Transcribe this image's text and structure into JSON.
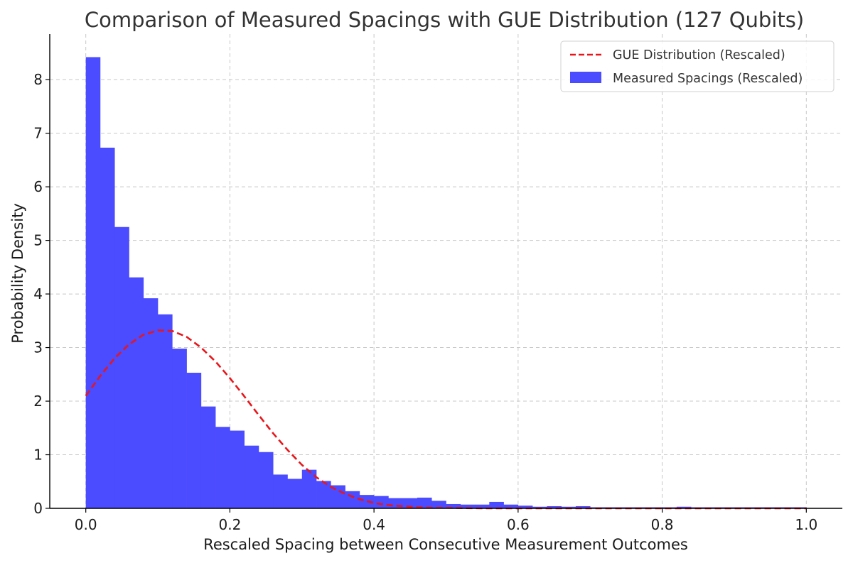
{
  "chart_data": {
    "type": "bar",
    "title": "Comparison of Measured Spacings with GUE Distribution (127 Qubits)",
    "xlabel": "Rescaled Spacing between Consecutive Measurement Outcomes",
    "ylabel": "Probability Density",
    "xlim": [
      -0.05,
      1.05
    ],
    "ylim": [
      0,
      8.85
    ],
    "xticks": [
      0.0,
      0.2,
      0.4,
      0.6,
      0.8,
      1.0
    ],
    "xtick_labels": [
      "0.0",
      "0.2",
      "0.4",
      "0.6",
      "0.8",
      "1.0"
    ],
    "yticks": [
      0,
      1,
      2,
      3,
      4,
      5,
      6,
      7,
      8
    ],
    "ytick_labels": [
      "0",
      "1",
      "2",
      "3",
      "4",
      "5",
      "6",
      "7",
      "8"
    ],
    "grid": true,
    "legend_position": "top-right",
    "histogram": {
      "name": "Measured Spacings (Rescaled)",
      "color": "#4b4bff",
      "bin_start": 0.0,
      "bin_width": 0.02,
      "values": [
        8.42,
        6.73,
        5.25,
        4.31,
        3.92,
        3.62,
        2.98,
        2.53,
        1.9,
        1.52,
        1.45,
        1.17,
        1.05,
        0.63,
        0.55,
        0.72,
        0.51,
        0.43,
        0.32,
        0.25,
        0.23,
        0.19,
        0.19,
        0.2,
        0.14,
        0.08,
        0.07,
        0.07,
        0.12,
        0.07,
        0.05,
        0.03,
        0.04,
        0.03,
        0.04,
        0.02,
        0.02,
        0.02,
        0.02,
        0.02,
        0.02,
        0.03,
        0.02,
        0.02,
        0.02,
        0.02,
        0.02,
        0.02,
        0.02,
        0.02
      ]
    },
    "line": {
      "name": "GUE Distribution (Rescaled)",
      "color": "#e8161b",
      "style": "dashed",
      "x": [
        0.0,
        0.02,
        0.04,
        0.06,
        0.08,
        0.1,
        0.12,
        0.14,
        0.16,
        0.18,
        0.2,
        0.22,
        0.24,
        0.26,
        0.28,
        0.3,
        0.32,
        0.34,
        0.36,
        0.38,
        0.4,
        0.42,
        0.44,
        0.46,
        0.48,
        0.5,
        0.55,
        0.6,
        0.65,
        0.7,
        0.75,
        0.8,
        0.85,
        0.9,
        0.95,
        1.0
      ],
      "y": [
        2.1,
        2.47,
        2.8,
        3.06,
        3.24,
        3.32,
        3.31,
        3.2,
        3.0,
        2.74,
        2.43,
        2.09,
        1.74,
        1.4,
        1.09,
        0.81,
        0.58,
        0.4,
        0.27,
        0.17,
        0.1,
        0.06,
        0.04,
        0.02,
        0.01,
        0.01,
        0.0,
        0.0,
        0.0,
        0.0,
        0.0,
        0.0,
        0.0,
        0.0,
        0.0,
        0.0
      ]
    }
  }
}
